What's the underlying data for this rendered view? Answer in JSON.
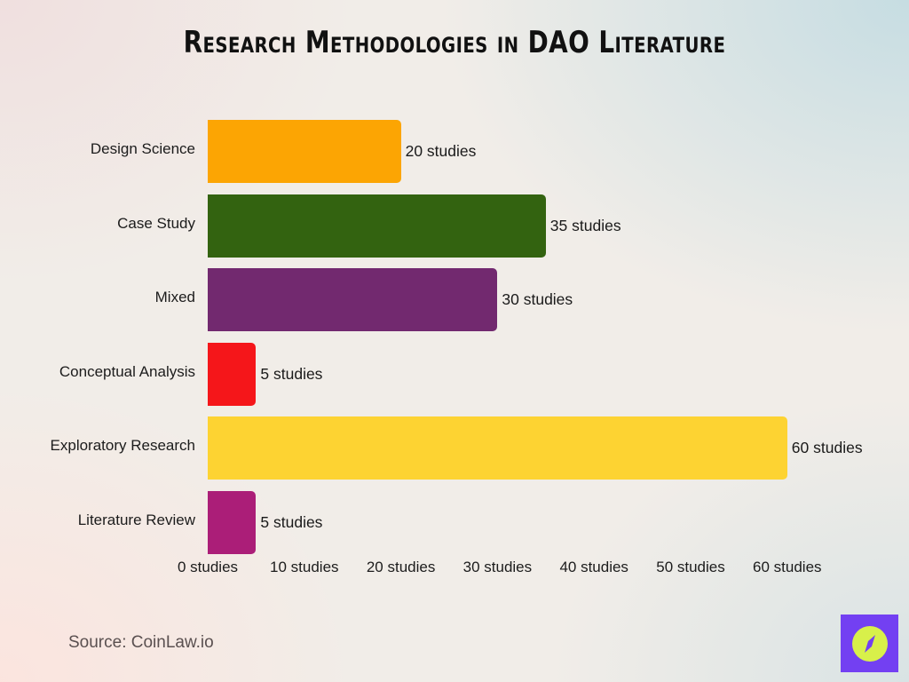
{
  "title": "Research Methodologies in DAO Literature",
  "source": "Source: CoinLaw.io",
  "logo": {
    "icon": "compass-icon",
    "bg_color": "#7340f2",
    "fg_color": "#d8f04a"
  },
  "axis": {
    "ticks": [
      "0 studies",
      "10 studies",
      "20 studies",
      "30 studies",
      "40 studies",
      "50 studies",
      "60 studies"
    ]
  },
  "bars": [
    {
      "label": "Design Science",
      "value": 20,
      "value_label": "20 studies",
      "color": "#fca503"
    },
    {
      "label": "Case Study",
      "value": 35,
      "value_label": "35 studies",
      "color": "#336310"
    },
    {
      "label": "Mixed",
      "value": 30,
      "value_label": "30 studies",
      "color": "#72296f"
    },
    {
      "label": "Conceptual Analysis",
      "value": 5,
      "value_label": "5 studies",
      "color": "#f5161a"
    },
    {
      "label": "Exploratory Research",
      "value": 60,
      "value_label": "60 studies",
      "color": "#fdd332"
    },
    {
      "label": "Literature Review",
      "value": 5,
      "value_label": "5 studies",
      "color": "#ab1e78"
    }
  ],
  "chart_data": {
    "type": "bar",
    "orientation": "horizontal",
    "title": "Research Methodologies in DAO Literature",
    "categories": [
      "Design Science",
      "Case Study",
      "Mixed",
      "Conceptual Analysis",
      "Exploratory Research",
      "Literature Review"
    ],
    "values": [
      20,
      35,
      30,
      5,
      60,
      5
    ],
    "value_labels": [
      "20 studies",
      "35 studies",
      "30 studies",
      "5 studies",
      "60 studies",
      "5 studies"
    ],
    "colors": [
      "#fca503",
      "#336310",
      "#72296f",
      "#f5161a",
      "#fdd332",
      "#ab1e78"
    ],
    "xlabel": "",
    "ylabel": "",
    "xlim": [
      0,
      60
    ],
    "xticks": [
      0,
      10,
      20,
      30,
      40,
      50,
      60
    ],
    "xtick_labels": [
      "0 studies",
      "10 studies",
      "20 studies",
      "30 studies",
      "40 studies",
      "50 studies",
      "60 studies"
    ],
    "grid": false,
    "legend": "none",
    "source": "Source: CoinLaw.io"
  }
}
